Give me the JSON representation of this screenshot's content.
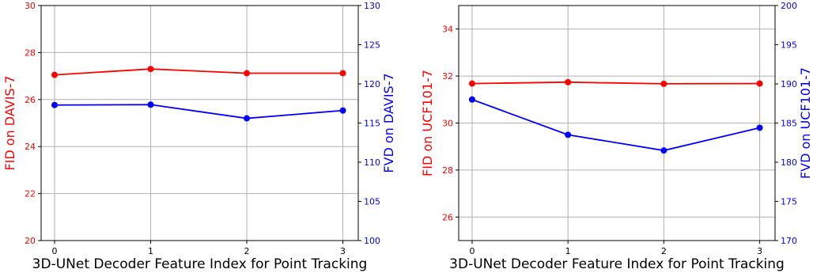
{
  "chart_data": [
    {
      "type": "line",
      "x": [
        0,
        1,
        2,
        3
      ],
      "xticks": [
        "0",
        "1",
        "2",
        "3"
      ],
      "xlabel": "3D-UNet Decoder Feature Index for Point Tracking",
      "ylabel_left": "FID on DAVIS-7",
      "ylabel_right": "FVD on DAVIS-7",
      "ylim_left": [
        20,
        30
      ],
      "yticks_left": [
        20,
        22,
        24,
        26,
        28,
        30
      ],
      "ylim_right": [
        100,
        130
      ],
      "yticks_right": [
        100,
        105,
        110,
        115,
        120,
        125,
        130
      ],
      "grid": true,
      "series": [
        {
          "axis": "left",
          "color": "#ff0000",
          "values": [
            27.05,
            27.3,
            27.12,
            27.12
          ]
        },
        {
          "axis": "right",
          "color": "#0000ff",
          "values": [
            117.3,
            117.35,
            115.6,
            116.6
          ]
        }
      ]
    },
    {
      "type": "line",
      "x": [
        0,
        1,
        2,
        3
      ],
      "xticks": [
        "0",
        "1",
        "2",
        "3"
      ],
      "xlabel": "3D-UNet Decoder Feature Index for Point Tracking",
      "ylabel_left": "FID on UCF101-7",
      "ylabel_right": "FVD on UCF101-7",
      "ylim_left": [
        25,
        35
      ],
      "yticks_left": [
        26,
        28,
        30,
        32,
        34
      ],
      "ylim_right": [
        170,
        200
      ],
      "yticks_right": [
        170,
        175,
        180,
        185,
        190,
        195,
        200
      ],
      "grid": true,
      "series": [
        {
          "axis": "left",
          "color": "#ff0000",
          "values": [
            31.68,
            31.74,
            31.67,
            31.68
          ]
        },
        {
          "axis": "right",
          "color": "#0000ff",
          "values": [
            188.0,
            183.5,
            181.5,
            184.4
          ]
        }
      ]
    }
  ]
}
